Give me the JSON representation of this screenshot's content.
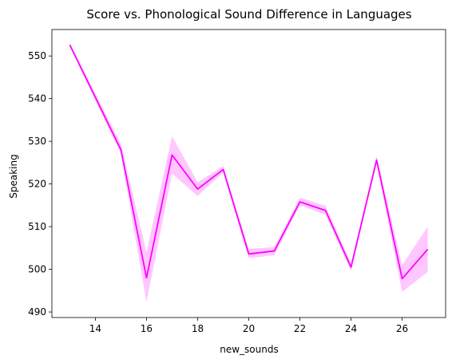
{
  "chart_data": {
    "type": "line",
    "title": "Score vs. Phonological Sound Difference in Languages",
    "xlabel": "new_sounds",
    "ylabel": "Speaking",
    "xlim": [
      12.3,
      27.7
    ],
    "ylim": [
      488.7,
      556.2
    ],
    "x_ticks": [
      14,
      16,
      18,
      20,
      22,
      24,
      26
    ],
    "y_ticks": [
      490,
      500,
      510,
      520,
      530,
      540,
      550
    ],
    "grid": false,
    "legend": "none",
    "series": [
      {
        "x": [
          13,
          15,
          16,
          17,
          18,
          19,
          20,
          21,
          22,
          23,
          24,
          25,
          26,
          27
        ],
        "values": [
          552.6,
          528.0,
          498.0,
          526.8,
          518.8,
          523.4,
          503.6,
          504.3,
          515.8,
          513.8,
          500.5,
          525.6,
          497.8,
          504.7
        ],
        "ci_low": [
          552.2,
          527.0,
          492.3,
          522.4,
          517.2,
          522.7,
          502.6,
          503.3,
          515.0,
          512.8,
          499.6,
          524.8,
          494.7,
          499.4
        ],
        "ci_high": [
          553.0,
          529.4,
          504.0,
          531.2,
          520.4,
          524.2,
          504.8,
          505.2,
          516.8,
          514.9,
          501.4,
          526.6,
          501.0,
          510.0
        ],
        "color": "#ff00ff"
      }
    ]
  }
}
